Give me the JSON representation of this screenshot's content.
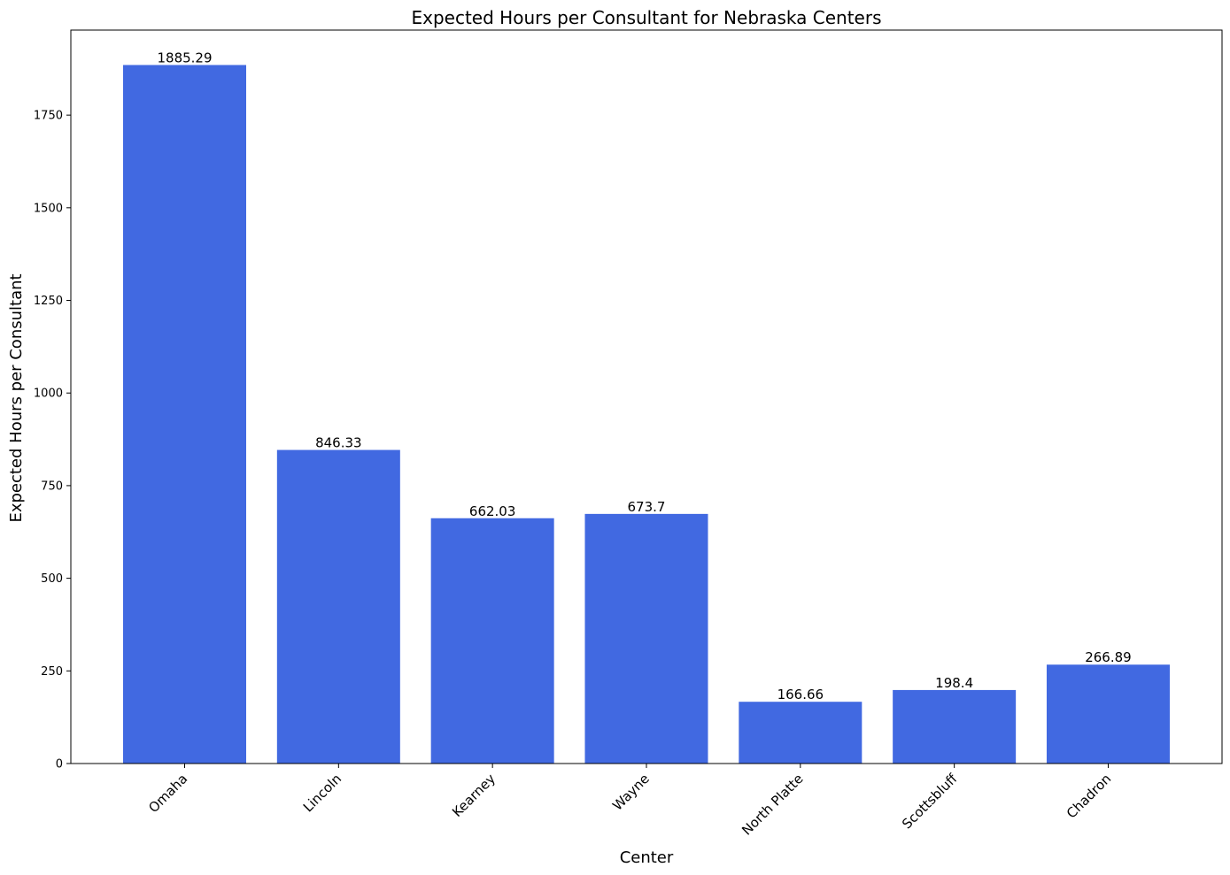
{
  "chart_data": {
    "type": "bar",
    "title": "Expected Hours per Consultant for Nebraska Centers",
    "xlabel": "Center",
    "ylabel": "Expected Hours per Consultant",
    "categories": [
      "Omaha",
      "Lincoln",
      "Kearney",
      "Wayne",
      "North Platte",
      "Scottsbluff",
      "Chadron"
    ],
    "values": [
      1885.29,
      846.33,
      662.03,
      673.7,
      166.66,
      198.4,
      266.89
    ],
    "data_labels": [
      "1885.29",
      "846.33",
      "662.03",
      "673.7",
      "166.66",
      "198.4",
      "266.89"
    ],
    "yticks": [
      0,
      250,
      500,
      750,
      1000,
      1250,
      1500,
      1750
    ],
    "ylim": [
      0,
      1979.55
    ],
    "bar_color": "#4169e1",
    "grid": false,
    "legend": "none"
  }
}
